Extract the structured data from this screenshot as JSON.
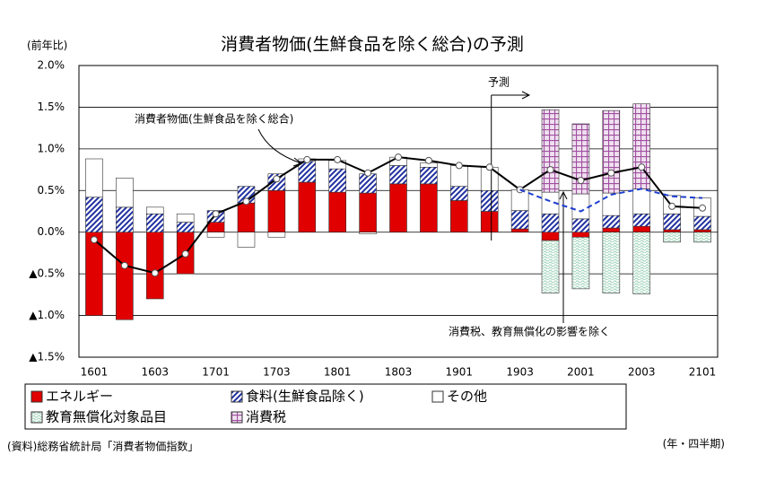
{
  "chart_data": {
    "type": "stacked_bar_line",
    "title": "消費者物価(生鮮食品を除く総合)の予測",
    "y_axis_label": "(前年比)",
    "x_axis_label": "(年・四半期)",
    "source": "(資料)総務省統計局「消費者物価指数」",
    "annotations": [
      "予測",
      "消費者物価(生鮮食品を除く総合)",
      "消費税、教育無償化の影響を除く"
    ],
    "categories": [
      "1601",
      null,
      "1603",
      null,
      "1701",
      null,
      "1703",
      null,
      "1801",
      null,
      "1803",
      null,
      "1901",
      null,
      "1903",
      null,
      "2001",
      null,
      "2003",
      null,
      "2101"
    ],
    "ylim": [
      -1.5,
      2.0
    ],
    "yticks": [
      {
        "value": 2.0,
        "label": "2.0%"
      },
      {
        "value": 1.5,
        "label": "1.5%"
      },
      {
        "value": 1.0,
        "label": "1.0%"
      },
      {
        "value": 0.5,
        "label": "0.5%"
      },
      {
        "value": 0.0,
        "label": "0.0%"
      },
      {
        "value": -0.5,
        "label": "▲0.5%"
      },
      {
        "value": -1.0,
        "label": "▲1.0%"
      },
      {
        "value": -1.5,
        "label": "▲1.5%"
      }
    ],
    "grid": true,
    "series": [
      {
        "name": "エネルギー",
        "color": "#e00000",
        "pattern": "solid",
        "values": [
          -1.0,
          -1.05,
          -0.8,
          -0.5,
          0.12,
          0.35,
          0.5,
          0.6,
          0.48,
          0.47,
          0.58,
          0.58,
          0.38,
          0.25,
          0.04,
          -0.1,
          -0.06,
          0.05,
          0.07,
          0.03,
          0.03
        ]
      },
      {
        "name": "食料(生鮮食品除く)",
        "color": "#1f2fa0",
        "pattern": "stripes",
        "values": [
          0.42,
          0.3,
          0.22,
          0.12,
          0.14,
          0.2,
          0.2,
          0.25,
          0.28,
          0.23,
          0.22,
          0.2,
          0.17,
          0.25,
          0.22,
          0.22,
          0.16,
          0.15,
          0.15,
          0.19,
          0.16
        ]
      },
      {
        "name": "その他",
        "color": "#ffffff",
        "pattern": "solid",
        "values": [
          0.46,
          0.35,
          0.08,
          0.1,
          -0.06,
          -0.18,
          -0.06,
          0.03,
          0.1,
          -0.02,
          0.1,
          0.05,
          0.25,
          0.28,
          0.25,
          0.26,
          0.3,
          0.27,
          0.3,
          0.22,
          0.22
        ]
      },
      {
        "name": "教育無償化対象品目",
        "color": "#a8d8c0",
        "pattern": "waves",
        "values": [
          null,
          null,
          null,
          null,
          null,
          null,
          null,
          null,
          null,
          null,
          null,
          null,
          null,
          null,
          null,
          -0.63,
          -0.62,
          -0.73,
          -0.74,
          -0.12,
          -0.12
        ]
      },
      {
        "name": "消費税",
        "color": "#a050a0",
        "pattern": "grid",
        "values": [
          null,
          null,
          null,
          null,
          null,
          null,
          null,
          null,
          null,
          null,
          null,
          null,
          null,
          null,
          null,
          0.99,
          0.84,
          0.99,
          1.02,
          null,
          null
        ]
      }
    ],
    "lines": [
      {
        "color": "#000000",
        "dashed": false,
        "markers": true,
        "values": [
          -0.09,
          -0.4,
          -0.49,
          -0.26,
          0.22,
          0.37,
          0.64,
          0.87,
          0.87,
          0.71,
          0.9,
          0.86,
          0.8,
          0.78,
          0.51,
          0.75,
          0.62,
          0.71,
          0.78,
          0.31,
          0.29
        ]
      },
      {
        "color": "#1f3fd0",
        "dashed": true,
        "markers": false,
        "values": [
          null,
          null,
          null,
          null,
          null,
          null,
          null,
          null,
          null,
          null,
          null,
          null,
          null,
          null,
          0.51,
          0.37,
          0.25,
          0.45,
          0.52,
          0.43,
          0.41
        ]
      }
    ]
  }
}
